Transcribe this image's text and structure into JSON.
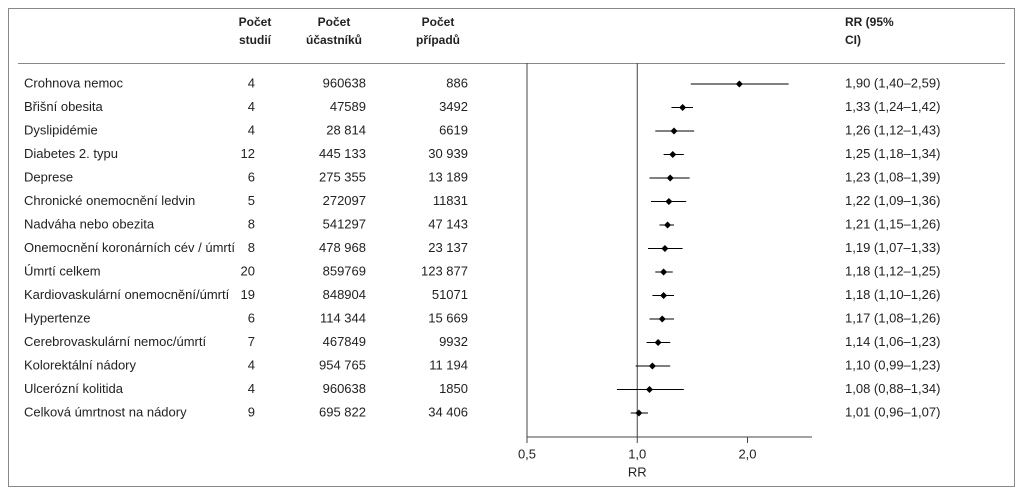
{
  "chart_data": {
    "type": "forest",
    "headers": {
      "studies": [
        "Počet",
        "studií"
      ],
      "participants": [
        "Počet",
        "účastníků"
      ],
      "cases": [
        "Počet",
        "případů"
      ],
      "rr": [
        "RR (95%",
        "CI)"
      ]
    },
    "categories": [
      "Crohnova nemoc",
      "Břišní obesita",
      "Dyslipidémie",
      "Diabetes 2. typu",
      "Deprese",
      "Chronické onemocnění ledvin",
      "Nadváha nebo obezita",
      "Onemocnění koronárních cév / úmrtí",
      "Úmrtí celkem",
      "Kardiovaskulární onemocnění/úmrtí",
      "Hypertenze",
      "Cerebrovaskulární nemoc/úmrtí",
      "Kolorektální nádory",
      "Ulcerózní kolitida",
      "Celková úmrtnost na nádory"
    ],
    "studies": [
      4,
      4,
      4,
      12,
      6,
      5,
      8,
      8,
      20,
      19,
      6,
      7,
      4,
      4,
      9
    ],
    "participants": [
      "960638",
      "47589",
      "28 814",
      "445 133",
      "275 355",
      "272097",
      "541297",
      "478 968",
      "859769",
      "848904",
      "114 344",
      "467849",
      "954 765",
      "960638",
      "695 822"
    ],
    "cases": [
      "886",
      "3492",
      "6619",
      "30 939",
      "13 189",
      "11831",
      "47 143",
      "23 137",
      "123 877",
      "51071",
      "15 669",
      "9932",
      "11 194",
      "1850",
      "34 406"
    ],
    "values": [
      1.9,
      1.33,
      1.26,
      1.25,
      1.23,
      1.22,
      1.21,
      1.19,
      1.18,
      1.18,
      1.17,
      1.14,
      1.1,
      1.08,
      1.01
    ],
    "lower": [
      1.4,
      1.24,
      1.12,
      1.18,
      1.08,
      1.09,
      1.15,
      1.07,
      1.12,
      1.1,
      1.08,
      1.06,
      0.99,
      0.88,
      0.96
    ],
    "upper": [
      2.59,
      1.42,
      1.43,
      1.34,
      1.39,
      1.36,
      1.26,
      1.33,
      1.25,
      1.26,
      1.26,
      1.23,
      1.23,
      1.34,
      1.07
    ],
    "value_labels": [
      "1,90 (1,40–2,59)",
      "1,33 (1,24–1,42)",
      "1,26 (1,12–1,43)",
      "1,25 (1,18–1,34)",
      "1,23 (1,08–1,39)",
      "1,22 (1,09–1,36)",
      "1,21 (1,15–1,26)",
      "1,19 (1,07–1,33)",
      "1,18 (1,12–1,25)",
      "1,18 (1,10–1,26)",
      "1,17 (1,08–1,26)",
      "1,14 (1,06–1,23)",
      "1,10 (0,99–1,23)",
      "1,08 (0,88–1,34)",
      "1,01 (0,96–1,07)"
    ],
    "color": "#000000",
    "xlabel": "RR",
    "xlim": [
      0.5,
      3.0
    ],
    "log_x": true,
    "reference": 1.0,
    "xticks": [
      {
        "value": 0.5,
        "label": "0,5"
      },
      {
        "value": 1.0,
        "label": "1,0"
      },
      {
        "value": 2.0,
        "label": "2,0"
      }
    ]
  }
}
